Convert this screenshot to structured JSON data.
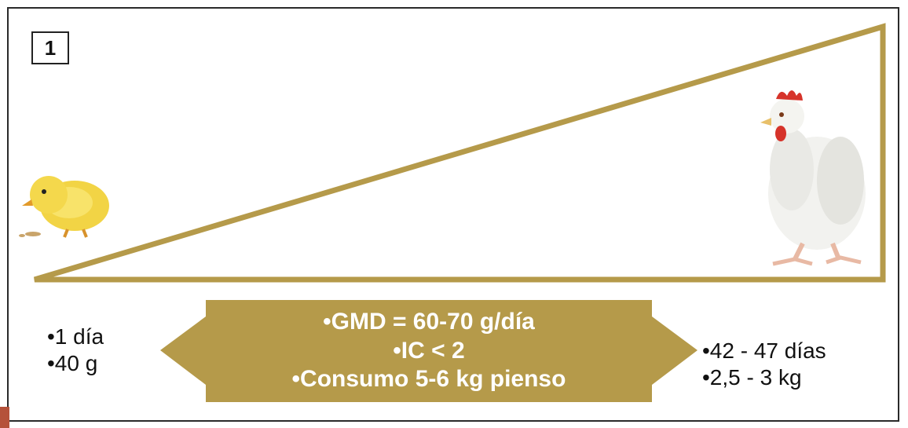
{
  "figure": {
    "number": "1"
  },
  "colors": {
    "accent_gold": "#B59A4A",
    "frame": "#2a2a2a",
    "text": "#111111",
    "panel_text": "#ffffff"
  },
  "icons": {
    "start": "chick-icon",
    "end": "chicken-icon"
  },
  "start": {
    "lines": [
      "•1 día",
      "•40 g"
    ]
  },
  "end": {
    "lines": [
      "•42 - 47 días",
      "•2,5 - 3 kg"
    ]
  },
  "center": {
    "lines": [
      "•GMD = 60-70 g/día",
      "•IC < 2",
      "•Consumo 5-6 kg pienso"
    ]
  }
}
